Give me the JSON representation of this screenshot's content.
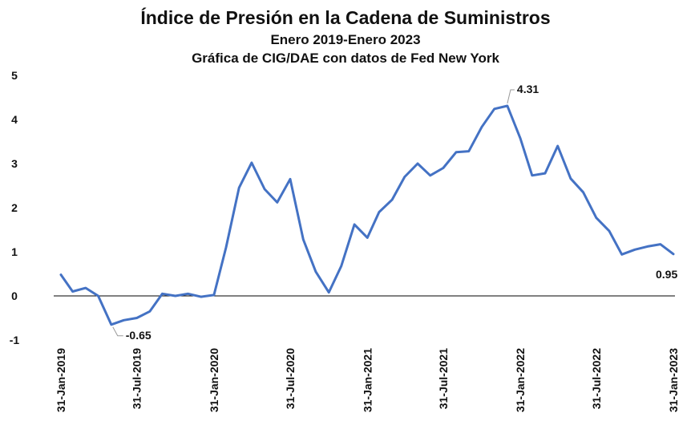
{
  "chart_data": {
    "type": "line",
    "title": "Índice de Presión en la Cadena de Suministros",
    "subtitle": "Enero 2019-Enero 2023",
    "source_note": "Gráfica de CIG/DAE con datos de Fed New York",
    "xlabel": "",
    "ylabel": "",
    "ylim": [
      -1,
      5
    ],
    "yticks": [
      -1,
      0,
      1,
      2,
      3,
      4,
      5
    ],
    "x_tick_labels": [
      "31-Jan-2019",
      "31-Jul-2019",
      "31-Jan-2020",
      "31-Jul-2020",
      "31-Jan-2021",
      "31-Jul-2021",
      "31-Jan-2022",
      "31-Jul-2022",
      "31-Jan-2023"
    ],
    "x_tick_dates": [
      "2019-01-31",
      "2019-07-31",
      "2020-01-31",
      "2020-07-31",
      "2021-01-31",
      "2021-07-31",
      "2022-01-31",
      "2022-07-31",
      "2023-01-31"
    ],
    "x": [
      "2019-01-31",
      "2019-02-28",
      "2019-03-31",
      "2019-04-30",
      "2019-05-31",
      "2019-06-30",
      "2019-07-31",
      "2019-08-31",
      "2019-09-30",
      "2019-10-31",
      "2019-11-30",
      "2019-12-31",
      "2020-01-31",
      "2020-02-29",
      "2020-03-31",
      "2020-04-30",
      "2020-05-31",
      "2020-06-30",
      "2020-07-31",
      "2020-08-31",
      "2020-09-30",
      "2020-10-31",
      "2020-11-30",
      "2020-12-31",
      "2021-01-31",
      "2021-02-28",
      "2021-03-31",
      "2021-04-30",
      "2021-05-31",
      "2021-06-30",
      "2021-07-31",
      "2021-08-31",
      "2021-09-30",
      "2021-10-31",
      "2021-11-30",
      "2021-12-31",
      "2022-01-31",
      "2022-02-28",
      "2022-03-31",
      "2022-04-30",
      "2022-05-31",
      "2022-06-30",
      "2022-07-31",
      "2022-08-31",
      "2022-09-30",
      "2022-10-31",
      "2022-11-30",
      "2022-12-31",
      "2023-01-31"
    ],
    "series": [
      {
        "color": "#4472C4",
        "values": [
          0.48,
          0.1,
          0.18,
          0.0,
          -0.65,
          -0.55,
          -0.5,
          -0.35,
          0.05,
          0.0,
          0.05,
          -0.02,
          0.02,
          1.1,
          2.45,
          3.02,
          2.42,
          2.12,
          2.65,
          1.28,
          0.55,
          0.08,
          0.68,
          1.62,
          1.32,
          1.9,
          2.18,
          2.7,
          3.0,
          2.73,
          2.9,
          3.26,
          3.28,
          3.83,
          4.24,
          4.31,
          3.57,
          2.73,
          2.78,
          3.4,
          2.66,
          2.35,
          1.77,
          1.47,
          0.94,
          1.05,
          1.12,
          1.17,
          0.95
        ]
      }
    ],
    "annotations": [
      {
        "x": "2019-05-31",
        "value": -0.65,
        "text": "-0.65"
      },
      {
        "x": "2021-12-31",
        "value": 4.31,
        "text": "4.31"
      },
      {
        "x": "2023-01-31",
        "value": 0.95,
        "text": "0.95"
      }
    ],
    "grid": false,
    "legend": "none"
  }
}
